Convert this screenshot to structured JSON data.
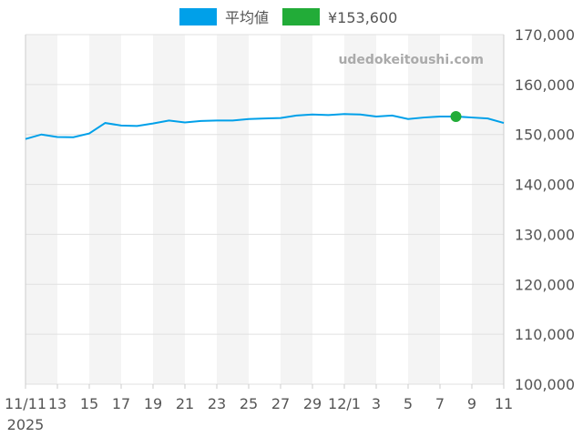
{
  "chart_data": {
    "type": "line",
    "title": "",
    "legend": [
      {
        "name": "平均値",
        "color": "#00a0e9"
      },
      {
        "name": "¥153,600",
        "color": "#22ac38"
      }
    ],
    "legend_position": "top",
    "watermark": "udedokeitoushi.com",
    "x": [
      "2025-11-11",
      "2025-11-12",
      "2025-11-13",
      "2025-11-14",
      "2025-11-15",
      "2025-11-16",
      "2025-11-17",
      "2025-11-18",
      "2025-11-19",
      "2025-11-20",
      "2025-11-21",
      "2025-11-22",
      "2025-11-23",
      "2025-11-24",
      "2025-11-25",
      "2025-11-26",
      "2025-11-27",
      "2025-11-28",
      "2025-11-29",
      "2025-11-30",
      "2025-12-01",
      "2025-12-02",
      "2025-12-03",
      "2025-12-04",
      "2025-12-05",
      "2025-12-06",
      "2025-12-07",
      "2025-12-08",
      "2025-12-09",
      "2025-12-10",
      "2025-12-11"
    ],
    "series": [
      {
        "name": "平均値",
        "color": "#00a0e9",
        "values": [
          149100,
          150000,
          149500,
          149450,
          150200,
          152300,
          151800,
          151700,
          152200,
          152800,
          152400,
          152700,
          152800,
          152800,
          153100,
          153200,
          153300,
          153800,
          154000,
          153900,
          154100,
          154000,
          153600,
          153800,
          153100,
          153400,
          153600,
          153600,
          153400,
          153200,
          152300
        ]
      }
    ],
    "highlight": {
      "x": "2025-12-08",
      "value": 153600,
      "color": "#22ac38"
    },
    "xtick_labels": [
      "11/11",
      "13",
      "15",
      "17",
      "19",
      "21",
      "23",
      "25",
      "27",
      "29",
      "12/1",
      "3",
      "5",
      "7",
      "9",
      "11"
    ],
    "xtick_year": "2025",
    "ytick_labels": [
      "100,000",
      "110,000",
      "120,000",
      "130,000",
      "140,000",
      "150,000",
      "160,000",
      "170,000"
    ],
    "ylim": [
      100000,
      170000
    ],
    "y_axis_position": "right",
    "grid": true,
    "alternating_day_bands": true
  }
}
